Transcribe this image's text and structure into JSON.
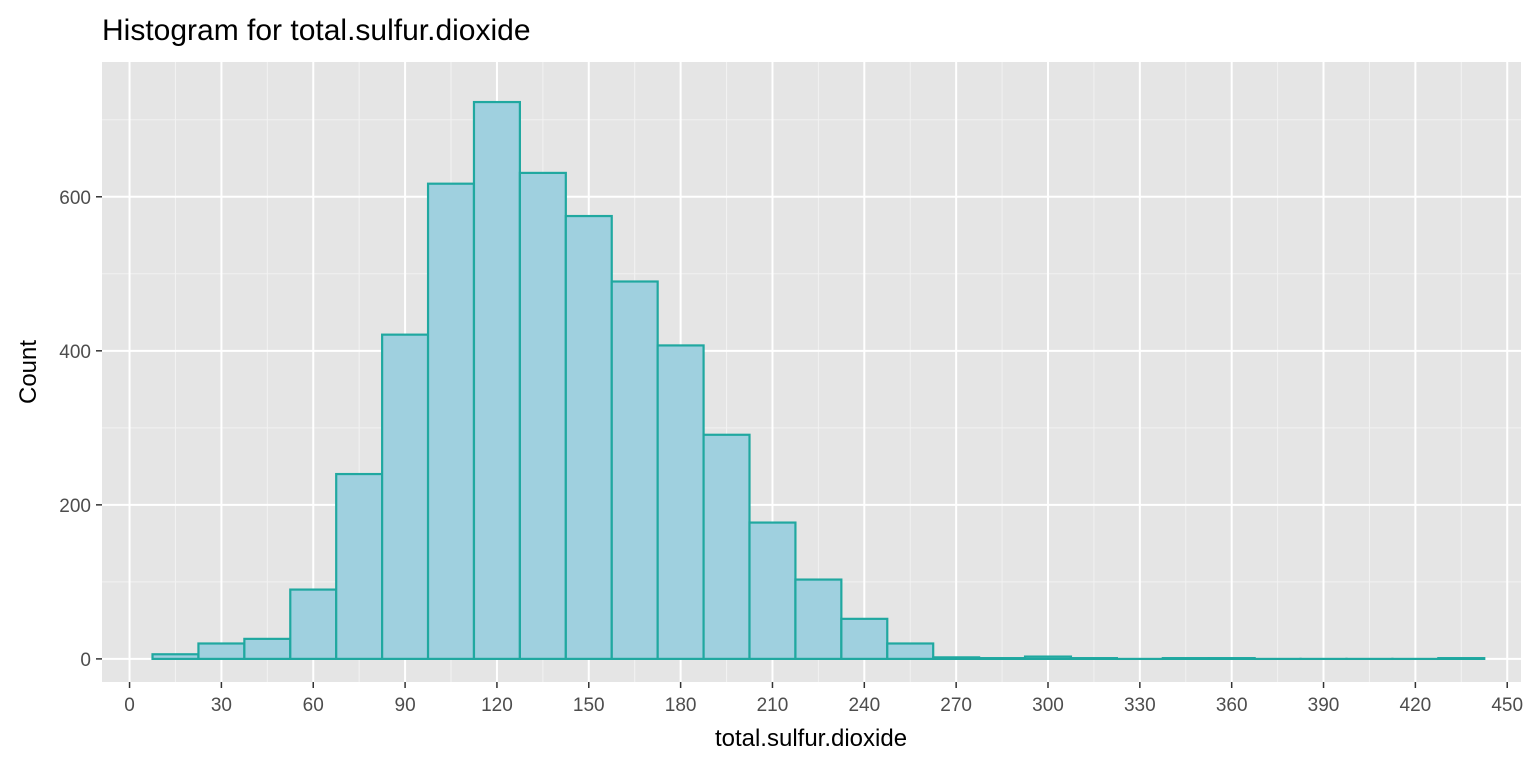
{
  "chart_data": {
    "type": "bar",
    "title": "Histogram for total.sulfur.dioxide",
    "xlabel": "total.sulfur.dioxide",
    "ylabel": "Count",
    "bin_width": 15,
    "bins": [
      {
        "x0": 7.5,
        "x1": 22.5,
        "count": 6
      },
      {
        "x0": 22.5,
        "x1": 37.5,
        "count": 20
      },
      {
        "x0": 37.5,
        "x1": 52.5,
        "count": 26
      },
      {
        "x0": 52.5,
        "x1": 67.5,
        "count": 90
      },
      {
        "x0": 67.5,
        "x1": 82.5,
        "count": 240
      },
      {
        "x0": 82.5,
        "x1": 97.5,
        "count": 421
      },
      {
        "x0": 97.5,
        "x1": 112.5,
        "count": 617
      },
      {
        "x0": 112.5,
        "x1": 127.5,
        "count": 723
      },
      {
        "x0": 127.5,
        "x1": 142.5,
        "count": 631
      },
      {
        "x0": 142.5,
        "x1": 157.5,
        "count": 575
      },
      {
        "x0": 157.5,
        "x1": 172.5,
        "count": 490
      },
      {
        "x0": 172.5,
        "x1": 187.5,
        "count": 407
      },
      {
        "x0": 187.5,
        "x1": 202.5,
        "count": 291
      },
      {
        "x0": 202.5,
        "x1": 217.5,
        "count": 177
      },
      {
        "x0": 217.5,
        "x1": 232.5,
        "count": 103
      },
      {
        "x0": 232.5,
        "x1": 247.5,
        "count": 52
      },
      {
        "x0": 247.5,
        "x1": 262.5,
        "count": 20
      },
      {
        "x0": 262.5,
        "x1": 277.5,
        "count": 2
      },
      {
        "x0": 277.5,
        "x1": 292.5,
        "count": 1
      },
      {
        "x0": 292.5,
        "x1": 307.5,
        "count": 3
      },
      {
        "x0": 307.5,
        "x1": 322.5,
        "count": 1
      },
      {
        "x0": 322.5,
        "x1": 337.5,
        "count": 0
      },
      {
        "x0": 337.5,
        "x1": 352.5,
        "count": 1
      },
      {
        "x0": 352.5,
        "x1": 367.5,
        "count": 1
      },
      {
        "x0": 367.5,
        "x1": 382.5,
        "count": 0
      },
      {
        "x0": 382.5,
        "x1": 397.5,
        "count": 0
      },
      {
        "x0": 397.5,
        "x1": 412.5,
        "count": 0
      },
      {
        "x0": 412.5,
        "x1": 427.5,
        "count": 0
      },
      {
        "x0": 427.5,
        "x1": 442.5,
        "count": 1
      }
    ],
    "xlim": [
      -9,
      454.5
    ],
    "ylim": [
      -30,
      775
    ],
    "x_ticks": [
      0,
      30,
      60,
      90,
      120,
      150,
      180,
      210,
      240,
      270,
      300,
      330,
      360,
      390,
      420,
      450
    ],
    "y_ticks": [
      0,
      200,
      400,
      600
    ],
    "grid": true,
    "legend": "none"
  },
  "colors": {
    "panel_background": "#e5e5e5",
    "grid_major": "#ffffff",
    "grid_minor": "#f2f2f2",
    "bar_fill": "#9fd0df",
    "bar_stroke": "#20a8a0",
    "tick_mark": "#333333",
    "tick_text": "#4d4d4d"
  }
}
